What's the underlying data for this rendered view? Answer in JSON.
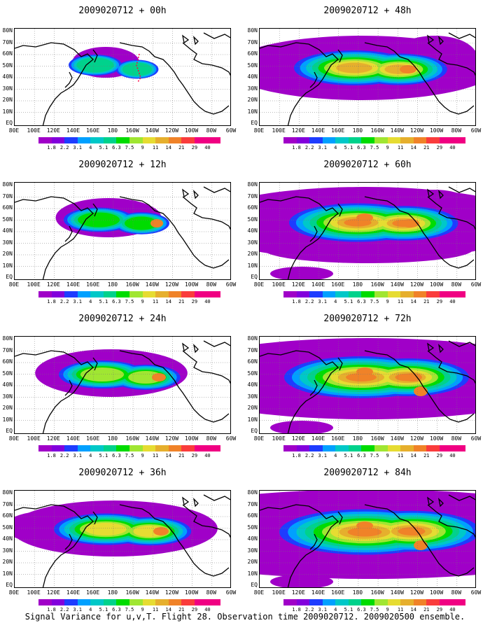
{
  "panels": [
    {
      "title": "2009020712 + 00h",
      "level": 0
    },
    {
      "title": "2009020712 + 48h",
      "level": 4
    },
    {
      "title": "2009020712 + 12h",
      "level": 1
    },
    {
      "title": "2009020712 + 60h",
      "level": 5
    },
    {
      "title": "2009020712 + 24h",
      "level": 2
    },
    {
      "title": "2009020712 + 72h",
      "level": 6
    },
    {
      "title": "2009020712 + 36h",
      "level": 3
    },
    {
      "title": "2009020712 + 84h",
      "level": 7
    }
  ],
  "lat_labels": [
    "80N",
    "70N",
    "60N",
    "50N",
    "40N",
    "30N",
    "20N",
    "10N",
    "EQ"
  ],
  "lon_labels": [
    "80E",
    "100E",
    "120E",
    "140E",
    "160E",
    "180",
    "160W",
    "140W",
    "120W",
    "100W",
    "80W",
    "60W"
  ],
  "colorbar": {
    "labels": [
      "1.8",
      "2.2",
      "3.1",
      "4",
      "5.1",
      "6.3",
      "7.5",
      "9",
      "11",
      "14",
      "21",
      "29",
      "40"
    ],
    "colors": [
      "#a000c8",
      "#8200dc",
      "#1e3cff",
      "#00a0ff",
      "#00c8c8",
      "#00d28c",
      "#00dc00",
      "#a0e632",
      "#e6dc32",
      "#e6af2d",
      "#f08228",
      "#fa3c3c",
      "#f00082"
    ]
  },
  "footer": "Signal Variance for u,v,T. Flight 28. Observation time 2009020712. 2009020500 ensemble."
}
